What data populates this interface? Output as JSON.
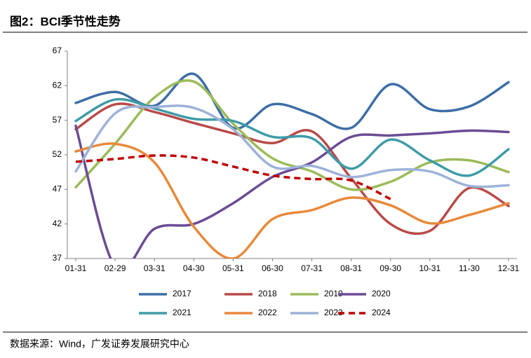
{
  "chart_data": {
    "type": "line",
    "title": "图2：BCI季节性走势",
    "source": "数据来源：Wind，广发证券发展研究中心",
    "categories": [
      "01-31",
      "02-29",
      "03-31",
      "04-30",
      "05-31",
      "06-30",
      "07-31",
      "08-31",
      "09-30",
      "10-31",
      "11-30",
      "12-31"
    ],
    "ylim": [
      37,
      67
    ],
    "yticks": [
      37,
      42,
      47,
      52,
      57,
      62,
      67
    ],
    "smooth": true,
    "series": [
      {
        "name": "2017",
        "color": "#3d6ea6",
        "values": [
          59.5,
          61.1,
          59.1,
          63.7,
          55.9,
          59.3,
          57.9,
          55.9,
          62.2,
          58.6,
          59.0,
          62.5
        ]
      },
      {
        "name": "2018",
        "color": "#b94a48",
        "values": [
          55.7,
          59.3,
          58.2,
          56.6,
          55.1,
          53.7,
          55.4,
          48.6,
          42.0,
          41.0,
          47.2,
          44.6
        ]
      },
      {
        "name": "2019",
        "color": "#9bbb59",
        "values": [
          47.3,
          53.6,
          60.3,
          62.6,
          56.5,
          51.5,
          49.6,
          47.0,
          48.1,
          50.9,
          51.2,
          49.5
        ]
      },
      {
        "name": "2020",
        "color": "#6b4c94",
        "values": [
          56.2,
          35.8,
          41.3,
          42.0,
          45.0,
          48.8,
          50.9,
          54.6,
          54.8,
          55.1,
          55.5,
          55.3
        ]
      },
      {
        "name": "2021",
        "color": "#3f9ba8",
        "values": [
          56.9,
          60.0,
          58.7,
          57.2,
          56.9,
          54.6,
          54.4,
          50.0,
          54.2,
          51.2,
          49.0,
          52.8
        ]
      },
      {
        "name": "2022",
        "color": "#e8893a",
        "values": [
          52.5,
          53.6,
          50.9,
          41.6,
          37.0,
          42.7,
          44.0,
          45.8,
          44.7,
          42.1,
          43.3,
          45.0
        ]
      },
      {
        "name": "2023",
        "color": "#9db2d8",
        "values": [
          49.6,
          58.0,
          58.9,
          58.8,
          55.7,
          50.3,
          50.4,
          48.8,
          49.8,
          49.6,
          47.5,
          47.6
        ]
      },
      {
        "name": "2024",
        "color": "#c00000",
        "dashed": true,
        "values": [
          51.0,
          51.4,
          51.9,
          51.6,
          50.3,
          49.0,
          48.5,
          48.3,
          45.6,
          null,
          null,
          null
        ]
      }
    ]
  }
}
